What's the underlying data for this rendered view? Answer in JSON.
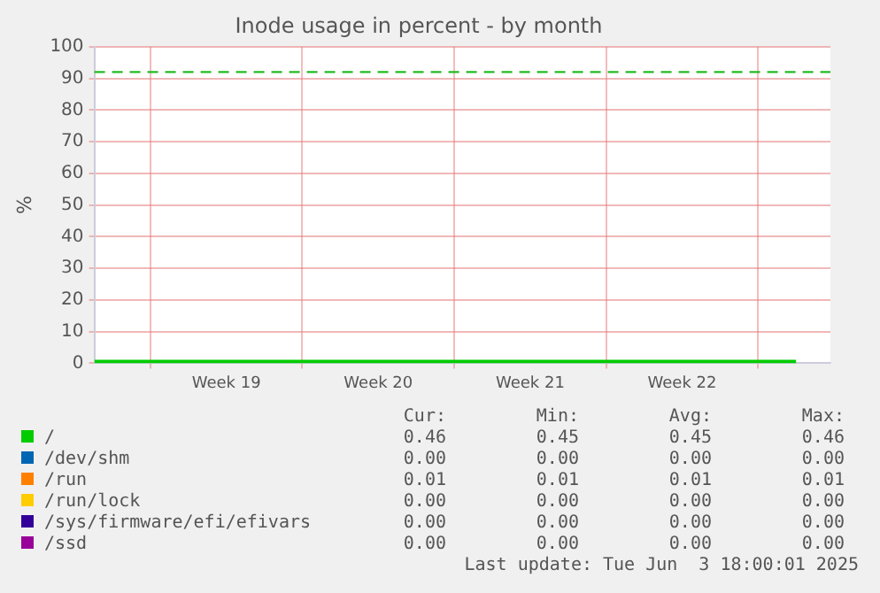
{
  "chart_data": {
    "type": "line",
    "title": "Inode usage in percent - by month",
    "ylabel": "%",
    "xlim": [
      "2025-05-02T10:00",
      "2025-06-05T08:00"
    ],
    "xticks": [
      {
        "value": "2025-05-05",
        "label": null
      },
      {
        "value": "2025-05-08T12:00",
        "label": "Week 19"
      },
      {
        "value": "2025-05-12",
        "label": null
      },
      {
        "value": "2025-05-15T12:00",
        "label": "Week 20"
      },
      {
        "value": "2025-05-19",
        "label": null
      },
      {
        "value": "2025-05-22T12:00",
        "label": "Week 21"
      },
      {
        "value": "2025-05-26",
        "label": null
      },
      {
        "value": "2025-05-29T12:00",
        "label": "Week 22"
      },
      {
        "value": "2025-06-02",
        "label": null
      }
    ],
    "ylim": [
      0,
      100
    ],
    "yticks": [
      0,
      10,
      20,
      30,
      40,
      50,
      60,
      70,
      80,
      90,
      100
    ],
    "grid": true,
    "legend": "bottom",
    "marker": "none",
    "line_style": "solid",
    "ref_lines": [
      {
        "axis": "y",
        "value": 92,
        "color": "#22bb22",
        "line_style": "dashed"
      }
    ],
    "x": [
      "2025-05-02T10:00",
      "2025-06-03T18:00"
    ],
    "series": [
      {
        "name": "/",
        "color": "#00cc00",
        "values": [
          0.5,
          0.5
        ]
      },
      {
        "name": "/dev/shm",
        "color": "#0066b3",
        "values": [
          null,
          null
        ]
      },
      {
        "name": "/run",
        "color": "#ff8000",
        "values": [
          null,
          null
        ]
      },
      {
        "name": "/run/lock",
        "color": "#ffcc00",
        "values": [
          null,
          null
        ]
      },
      {
        "name": "/sys/firmware/efi/efivars",
        "color": "#330099",
        "values": [
          null,
          null
        ]
      },
      {
        "name": "/ssd",
        "color": "#990099",
        "values": [
          null,
          null
        ]
      }
    ],
    "annotations": [
      "Cur:",
      "Min:",
      "Avg:",
      "Max:",
      "0.46",
      "0.45",
      "0.45",
      "0.46",
      "0.00",
      "0.00",
      "0.00",
      "0.00",
      "0.01",
      "0.01",
      "0.01",
      "0.01",
      "0.00",
      "0.00",
      "0.00",
      "0.00",
      "0.00",
      "0.00",
      "0.00",
      "0.00",
      "0.00",
      "0.00",
      "0.00",
      "0.00",
      "Last update: Tue Jun  3 18:00:01 2025"
    ]
  }
}
